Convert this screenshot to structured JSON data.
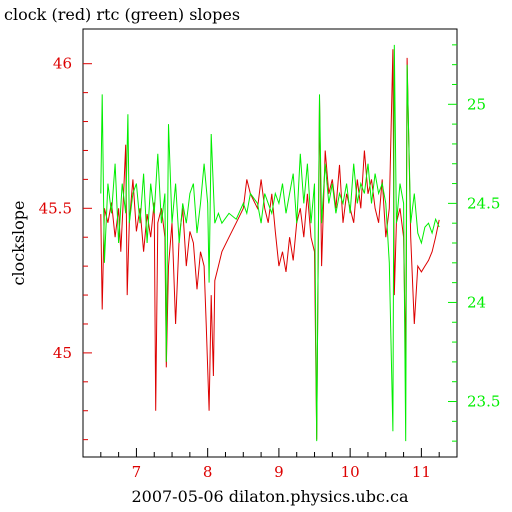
{
  "chart_data": {
    "type": "line",
    "title": "clock (red) rtc (green) slopes",
    "xlabel": "2007-05-06  dilaton.physics.ubc.ca",
    "ylabel": "clockslope",
    "xlim": [
      6.25,
      11.5
    ],
    "x_ticks": [
      7,
      8,
      9,
      10,
      11
    ],
    "x_tick_labels": [
      "7",
      "8",
      "9",
      "10",
      "11"
    ],
    "y_left": {
      "lim": [
        44.64,
        46.12
      ],
      "ticks": [
        45,
        45.5,
        46
      ],
      "tick_labels": [
        "45",
        "45.5",
        "46"
      ],
      "color": "#dd0000"
    },
    "y_right": {
      "lim": [
        23.22,
        25.38
      ],
      "ticks": [
        23.5,
        24,
        24.5,
        25
      ],
      "tick_labels": [
        "23.5",
        "24",
        "24.5",
        "25"
      ],
      "color": "#00ee00"
    },
    "series": [
      {
        "name": "clock",
        "color": "#dd0000",
        "axis": "left",
        "points": [
          [
            6.5,
            45.48
          ],
          [
            6.52,
            45.15
          ],
          [
            6.55,
            45.5
          ],
          [
            6.6,
            45.45
          ],
          [
            6.65,
            45.52
          ],
          [
            6.7,
            45.4
          ],
          [
            6.75,
            45.5
          ],
          [
            6.78,
            45.35
          ],
          [
            6.82,
            45.55
          ],
          [
            6.85,
            45.72
          ],
          [
            6.87,
            45.2
          ],
          [
            6.9,
            45.45
          ],
          [
            6.95,
            45.6
          ],
          [
            7.0,
            45.42
          ],
          [
            7.05,
            45.5
          ],
          [
            7.1,
            45.35
          ],
          [
            7.15,
            45.48
          ],
          [
            7.2,
            45.4
          ],
          [
            7.25,
            45.52
          ],
          [
            7.27,
            44.8
          ],
          [
            7.3,
            45.45
          ],
          [
            7.35,
            45.5
          ],
          [
            7.4,
            45.4
          ],
          [
            7.42,
            44.95
          ],
          [
            7.45,
            45.3
          ],
          [
            7.5,
            45.45
          ],
          [
            7.55,
            45.1
          ],
          [
            7.6,
            45.4
          ],
          [
            7.65,
            45.5
          ],
          [
            7.7,
            45.3
          ],
          [
            7.75,
            45.42
          ],
          [
            7.8,
            45.38
          ],
          [
            7.85,
            45.22
          ],
          [
            7.9,
            45.35
          ],
          [
            7.95,
            45.3
          ],
          [
            7.98,
            45.1
          ],
          [
            8.02,
            44.8
          ],
          [
            8.05,
            45.2
          ],
          [
            8.08,
            44.92
          ],
          [
            8.1,
            45.25
          ],
          [
            8.15,
            45.3
          ],
          [
            8.2,
            45.35
          ],
          [
            8.3,
            45.4
          ],
          [
            8.4,
            45.45
          ],
          [
            8.5,
            45.5
          ],
          [
            8.55,
            45.6
          ],
          [
            8.6,
            45.55
          ],
          [
            8.7,
            45.5
          ],
          [
            8.75,
            45.6
          ],
          [
            8.8,
            45.5
          ],
          [
            8.85,
            45.45
          ],
          [
            8.9,
            45.55
          ],
          [
            8.95,
            45.42
          ],
          [
            9.0,
            45.3
          ],
          [
            9.05,
            45.35
          ],
          [
            9.1,
            45.28
          ],
          [
            9.15,
            45.4
          ],
          [
            9.2,
            45.32
          ],
          [
            9.25,
            45.45
          ],
          [
            9.3,
            45.5
          ],
          [
            9.35,
            45.4
          ],
          [
            9.4,
            45.55
          ],
          [
            9.45,
            45.4
          ],
          [
            9.5,
            45.35
          ],
          [
            9.53,
            44.7
          ],
          [
            9.57,
            45.88
          ],
          [
            9.6,
            45.3
          ],
          [
            9.65,
            45.7
          ],
          [
            9.7,
            45.55
          ],
          [
            9.75,
            45.6
          ],
          [
            9.8,
            45.5
          ],
          [
            9.85,
            45.65
          ],
          [
            9.9,
            45.45
          ],
          [
            9.95,
            45.55
          ],
          [
            10.0,
            45.5
          ],
          [
            10.05,
            45.45
          ],
          [
            10.1,
            45.6
          ],
          [
            10.15,
            45.5
          ],
          [
            10.2,
            45.7
          ],
          [
            10.25,
            45.55
          ],
          [
            10.3,
            45.6
          ],
          [
            10.35,
            45.5
          ],
          [
            10.4,
            45.45
          ],
          [
            10.45,
            45.6
          ],
          [
            10.5,
            45.4
          ],
          [
            10.55,
            45.5
          ],
          [
            10.6,
            46.05
          ],
          [
            10.62,
            45.2
          ],
          [
            10.65,
            45.45
          ],
          [
            10.7,
            45.5
          ],
          [
            10.75,
            45.4
          ],
          [
            10.78,
            44.95
          ],
          [
            10.8,
            46.02
          ],
          [
            10.85,
            45.4
          ],
          [
            10.9,
            45.1
          ],
          [
            10.95,
            45.3
          ],
          [
            11.0,
            45.28
          ],
          [
            11.05,
            45.3
          ],
          [
            11.1,
            45.32
          ],
          [
            11.15,
            45.35
          ],
          [
            11.2,
            45.4
          ],
          [
            11.25,
            45.46
          ]
        ]
      },
      {
        "name": "rtc",
        "color": "#00ee00",
        "axis": "right",
        "points": [
          [
            6.5,
            24.55
          ],
          [
            6.52,
            25.05
          ],
          [
            6.55,
            24.2
          ],
          [
            6.6,
            24.6
          ],
          [
            6.65,
            24.45
          ],
          [
            6.7,
            24.7
          ],
          [
            6.75,
            24.3
          ],
          [
            6.8,
            24.6
          ],
          [
            6.85,
            24.45
          ],
          [
            6.88,
            24.95
          ],
          [
            6.9,
            24.4
          ],
          [
            6.95,
            24.55
          ],
          [
            7.0,
            24.6
          ],
          [
            7.05,
            24.4
          ],
          [
            7.1,
            24.65
          ],
          [
            7.15,
            24.3
          ],
          [
            7.2,
            24.6
          ],
          [
            7.25,
            24.45
          ],
          [
            7.3,
            24.75
          ],
          [
            7.35,
            24.4
          ],
          [
            7.4,
            24.55
          ],
          [
            7.42,
            23.7
          ],
          [
            7.45,
            24.9
          ],
          [
            7.5,
            24.4
          ],
          [
            7.55,
            24.6
          ],
          [
            7.6,
            24.3
          ],
          [
            7.65,
            24.5
          ],
          [
            7.7,
            24.4
          ],
          [
            7.75,
            24.55
          ],
          [
            7.8,
            24.6
          ],
          [
            7.85,
            24.35
          ],
          [
            7.9,
            24.5
          ],
          [
            7.95,
            24.7
          ],
          [
            8.0,
            24.5
          ],
          [
            8.02,
            24.1
          ],
          [
            8.05,
            24.85
          ],
          [
            8.1,
            24.4
          ],
          [
            8.15,
            24.45
          ],
          [
            8.2,
            24.4
          ],
          [
            8.3,
            24.45
          ],
          [
            8.4,
            24.42
          ],
          [
            8.5,
            24.5
          ],
          [
            8.55,
            24.45
          ],
          [
            8.6,
            24.55
          ],
          [
            8.7,
            24.5
          ],
          [
            8.75,
            24.4
          ],
          [
            8.8,
            24.55
          ],
          [
            8.85,
            24.5
          ],
          [
            8.9,
            24.45
          ],
          [
            8.95,
            24.55
          ],
          [
            9.0,
            24.5
          ],
          [
            9.05,
            24.6
          ],
          [
            9.1,
            24.45
          ],
          [
            9.15,
            24.55
          ],
          [
            9.2,
            24.65
          ],
          [
            9.25,
            24.4
          ],
          [
            9.3,
            24.75
          ],
          [
            9.35,
            24.5
          ],
          [
            9.4,
            24.7
          ],
          [
            9.45,
            24.4
          ],
          [
            9.5,
            24.6
          ],
          [
            9.53,
            23.3
          ],
          [
            9.57,
            25.05
          ],
          [
            9.6,
            24.4
          ],
          [
            9.65,
            24.7
          ],
          [
            9.7,
            24.5
          ],
          [
            9.75,
            24.6
          ],
          [
            9.8,
            24.45
          ],
          [
            9.85,
            24.55
          ],
          [
            9.9,
            24.5
          ],
          [
            9.95,
            24.6
          ],
          [
            10.0,
            24.45
          ],
          [
            10.05,
            24.7
          ],
          [
            10.1,
            24.5
          ],
          [
            10.15,
            24.6
          ],
          [
            10.2,
            24.55
          ],
          [
            10.25,
            24.7
          ],
          [
            10.3,
            24.5
          ],
          [
            10.35,
            24.65
          ],
          [
            10.4,
            24.55
          ],
          [
            10.45,
            24.6
          ],
          [
            10.5,
            24.5
          ],
          [
            10.55,
            24.2
          ],
          [
            10.6,
            23.35
          ],
          [
            10.62,
            25.3
          ],
          [
            10.65,
            24.4
          ],
          [
            10.7,
            24.6
          ],
          [
            10.75,
            24.5
          ],
          [
            10.78,
            23.3
          ],
          [
            10.8,
            25.2
          ],
          [
            10.85,
            24.4
          ],
          [
            10.9,
            24.55
          ],
          [
            10.95,
            24.35
          ],
          [
            11.0,
            24.3
          ],
          [
            11.05,
            24.38
          ],
          [
            11.1,
            24.4
          ],
          [
            11.15,
            24.35
          ],
          [
            11.2,
            24.42
          ],
          [
            11.25,
            24.38
          ]
        ]
      }
    ]
  }
}
